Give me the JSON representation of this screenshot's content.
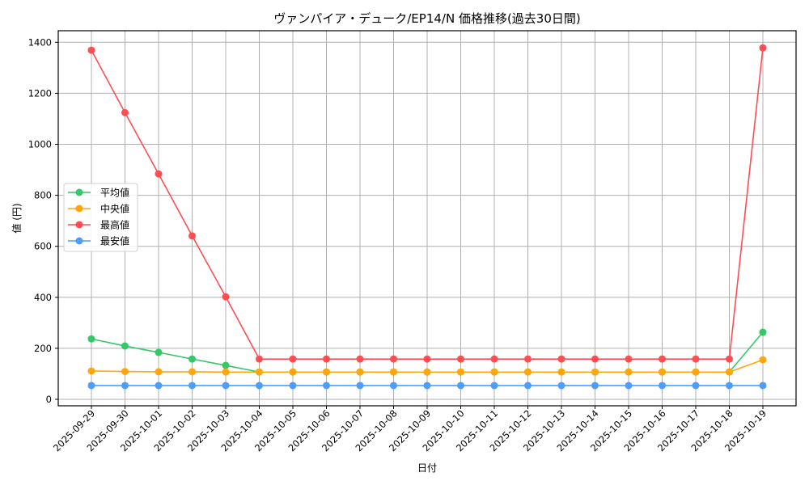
{
  "chart_data": {
    "type": "line",
    "title": "ヴァンパイア・デューク/EP14/N 価格推移(過去30日間)",
    "xlabel": "日付",
    "ylabel": "値 (円)",
    "ylim": [
      -25,
      1445
    ],
    "yticks": [
      0,
      200,
      400,
      600,
      800,
      1000,
      1200,
      1400
    ],
    "grid": true,
    "legend_position": "center left",
    "categories": [
      "2025-09-29",
      "2025-09-30",
      "2025-10-01",
      "2025-10-02",
      "2025-10-03",
      "2025-10-04",
      "2025-10-05",
      "2025-10-06",
      "2025-10-07",
      "2025-10-08",
      "2025-10-09",
      "2025-10-10",
      "2025-10-11",
      "2025-10-12",
      "2025-10-13",
      "2025-10-14",
      "2025-10-15",
      "2025-10-16",
      "2025-10-17",
      "2025-10-18",
      "2025-10-19"
    ],
    "series": [
      {
        "name": "平均値",
        "color": "#33c968",
        "values": [
          237,
          209,
          184,
          158,
          133,
          107,
          107,
          107,
          107,
          107,
          107,
          107,
          107,
          107,
          107,
          107,
          107,
          107,
          107,
          107,
          263
        ]
      },
      {
        "name": "中央値",
        "color": "#ffa60a",
        "values": [
          111,
          109,
          108,
          108,
          107,
          107,
          107,
          107,
          107,
          107,
          107,
          107,
          107,
          107,
          107,
          107,
          107,
          107,
          107,
          107,
          155
        ]
      },
      {
        "name": "最高値",
        "color": "#ff4d52",
        "values": [
          1369,
          1124,
          884,
          641,
          402,
          158,
          158,
          158,
          158,
          158,
          158,
          158,
          158,
          158,
          158,
          158,
          158,
          158,
          158,
          158,
          1378
        ]
      },
      {
        "name": "最安値",
        "color": "#4d9dff",
        "values": [
          54,
          54,
          54,
          54,
          54,
          54,
          54,
          54,
          54,
          54,
          54,
          54,
          54,
          54,
          54,
          54,
          54,
          54,
          54,
          54,
          54
        ]
      }
    ]
  }
}
